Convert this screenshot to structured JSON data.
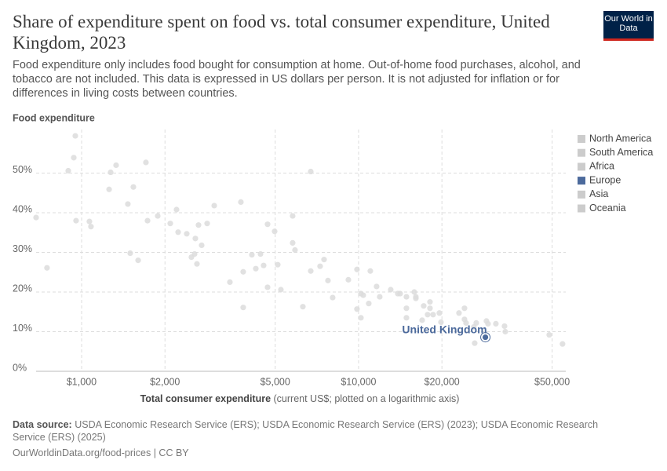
{
  "chart_data": {
    "type": "scatter",
    "title": "Share of expenditure spent on food vs. total consumer expenditure, United Kingdom, 2023",
    "subtitle": "Food expenditure only includes food bought for consumption at home. Out-of-home food purchases, alcohol, and tobacco are not included. This data is expressed in US dollars per person. It is not adjusted for inflation or for differences in living costs between countries.",
    "logo": "Our World in Data",
    "y_axis_label": "Food expenditure",
    "x_axis_label": "Total consumer expenditure",
    "x_axis_note": "(current US$; plotted on a logarithmic axis)",
    "x_log": true,
    "grid": true,
    "xlim": [
      685,
      56000
    ],
    "ylim": [
      0,
      61
    ],
    "xticks": [
      {
        "value": 1000,
        "label": "$1,000"
      },
      {
        "value": 2000,
        "label": "$2,000"
      },
      {
        "value": 5000,
        "label": "$5,000"
      },
      {
        "value": 10000,
        "label": "$10,000"
      },
      {
        "value": 20000,
        "label": "$20,000"
      },
      {
        "value": 50000,
        "label": "$50,000"
      }
    ],
    "yticks": [
      {
        "value": 0,
        "label": "0%"
      },
      {
        "value": 10,
        "label": "10%"
      },
      {
        "value": 20,
        "label": "20%"
      },
      {
        "value": 30,
        "label": "30%"
      },
      {
        "value": 40,
        "label": "40%"
      },
      {
        "value": 50,
        "label": "50%"
      }
    ],
    "point_color": "#dcdcdc",
    "x": [
      685,
      750,
      895,
      937,
      949,
      955,
      1067,
      1081,
      1257,
      1273,
      1332,
      1469,
      1498,
      1538,
      1600,
      1707,
      1730,
      1883,
      2090,
      2202,
      2231,
      2397,
      2492,
      2558,
      2575,
      2609,
      2643,
      2713,
      2840,
      3012,
      3431,
      3759,
      3833,
      3833,
      4119,
      4256,
      4425,
      4542,
      4693,
      4693,
      4977,
      5108,
      5243,
      5781,
      5781,
      5895,
      6294,
      6719,
      6719,
      7264,
      7506,
      7754,
      8064,
      9189,
      9870,
      9870,
      10197,
      10197,
      10399,
      10884,
      11027,
      11619,
      11925,
      13066,
      13856,
      14130,
      14890,
      14890,
      14890,
      15893,
      16103,
      16103,
      17187,
      16965,
      17757,
      18109,
      18109,
      18586,
      19580,
      19838,
      23049,
      24125,
      24125,
      24444,
      26088,
      26260,
      26603,
      28960,
      29338,
      31316,
      33651,
      33870,
      48800,
      54510
    ],
    "y": [
      38.8,
      26.1,
      50.6,
      53.9,
      59.4,
      38.0,
      37.8,
      36.5,
      45.9,
      50.2,
      52.0,
      42.2,
      29.8,
      46.5,
      28.0,
      52.7,
      38.0,
      39.2,
      37.3,
      40.8,
      35.1,
      34.7,
      28.8,
      29.6,
      33.5,
      27.1,
      36.9,
      31.8,
      37.3,
      41.8,
      22.5,
      42.7,
      16.1,
      25.1,
      29.4,
      25.9,
      29.6,
      26.7,
      37.1,
      21.2,
      35.3,
      26.9,
      20.6,
      39.2,
      32.4,
      30.6,
      16.3,
      50.4,
      25.3,
      26.5,
      28.2,
      22.9,
      18.6,
      23.1,
      25.7,
      15.7,
      13.5,
      19.6,
      19.2,
      17.1,
      25.3,
      21.4,
      18.8,
      20.6,
      19.6,
      19.6,
      15.9,
      13.5,
      18.8,
      20.0,
      18.8,
      18.4,
      16.5,
      12.9,
      14.3,
      17.5,
      15.9,
      14.3,
      14.7,
      12.4,
      14.7,
      15.9,
      13.1,
      12.2,
      11.2,
      7.1,
      12.2,
      12.7,
      12.0,
      12.0,
      11.4,
      10.0,
      9.2,
      6.9
    ],
    "highlight": {
      "label": "United Kingdom",
      "x": 28700,
      "y": 8.6,
      "color": "#4c6a9c"
    },
    "legend": [
      {
        "name": "North America",
        "color": "#cccccc"
      },
      {
        "name": "South America",
        "color": "#cccccc"
      },
      {
        "name": "Africa",
        "color": "#cccccc"
      },
      {
        "name": "Europe",
        "color": "#4c6a9c"
      },
      {
        "name": "Asia",
        "color": "#cccccc"
      },
      {
        "name": "Oceania",
        "color": "#cccccc"
      }
    ],
    "source_label": "Data source:",
    "source": "USDA Economic Research Service (ERS); USDA Economic Research Service (ERS) (2023); USDA Economic Research Service (ERS) (2025)",
    "footer": "OurWorldinData.org/food-prices | CC BY"
  }
}
